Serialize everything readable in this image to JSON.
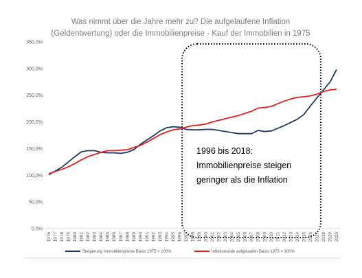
{
  "chart_data": {
    "type": "line",
    "title": [
      "Was nimmt über die Jahre mehr zu? Die aufgelaufene Inflation",
      "(Geldentwertung) oder die Immobilienpreise - Kauf der Immobilien in 1975"
    ],
    "categories": [
      "1976",
      "1977",
      "1978",
      "1979",
      "1980",
      "1981",
      "1982",
      "1983",
      "1984",
      "1985",
      "1986",
      "1987",
      "1988",
      "1989",
      "1990",
      "1991",
      "1992",
      "1993",
      "1994",
      "1995",
      "1996",
      "1997",
      "1998",
      "1999",
      "2000",
      "2001",
      "2002",
      "2003",
      "2004",
      "2005",
      "2006",
      "2007",
      "2008",
      "2009",
      "2010",
      "2011",
      "2012",
      "2013",
      "2014",
      "2015",
      "2016",
      "2017",
      "2018",
      "2019",
      "2020"
    ],
    "series": [
      {
        "name": "Steigerung Immobilienpreise Basis 1975 > 100%",
        "color": "#1f3864",
        "values": [
          101,
          108,
          115,
          125,
          135,
          144,
          146,
          146,
          143,
          142,
          142,
          141,
          143,
          148,
          158,
          166,
          174,
          183,
          189,
          191,
          190,
          186,
          185,
          185,
          186,
          186,
          184,
          182,
          180,
          178,
          178,
          178,
          184,
          182,
          183,
          188,
          193,
          199,
          205,
          214,
          230,
          245,
          260,
          275,
          298
        ]
      },
      {
        "name": "Inflationsrate aufgelaufen Basis 1975 > 100%",
        "color": "#e8201c",
        "values": [
          103,
          107,
          111,
          116,
          122,
          129,
          135,
          139,
          143,
          146,
          146,
          147,
          148,
          152,
          156,
          162,
          169,
          176,
          181,
          185,
          187,
          190,
          193,
          194,
          196,
          200,
          203,
          206,
          209,
          212,
          216,
          220,
          226,
          227,
          229,
          234,
          239,
          243,
          246,
          247,
          249,
          252,
          257,
          260,
          261
        ]
      }
    ],
    "ylim": [
      0,
      350
    ],
    "yticks": [
      {
        "value": 0,
        "label": "0,0%"
      },
      {
        "value": 50,
        "label": "50,0%"
      },
      {
        "value": 100,
        "label": "100,0%"
      },
      {
        "value": 150,
        "label": "150,0%"
      },
      {
        "value": 200,
        "label": "200,0%"
      },
      {
        "value": 250,
        "label": "250,0%"
      },
      {
        "value": 300,
        "label": "300,0%"
      },
      {
        "value": 350,
        "label": "350,0%"
      }
    ],
    "grid": false,
    "annotation": [
      "1996 bis 2018:",
      "Immobilienpreise  steigen",
      "geringer als die Inflation"
    ],
    "legend": "bottom"
  }
}
